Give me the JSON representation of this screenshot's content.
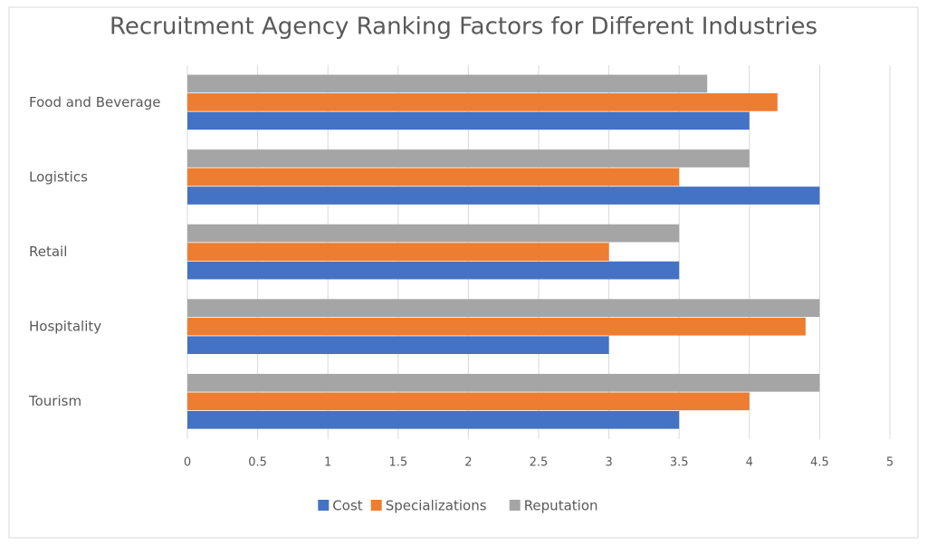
{
  "chart_data": {
    "type": "bar",
    "orientation": "horizontal",
    "title": "Recruitment Agency Ranking Factors for Different Industries",
    "categories": [
      "Food and Beverage",
      "Logistics",
      "Retail",
      "Hospitality",
      "Tourism"
    ],
    "series": [
      {
        "name": "Cost",
        "color": "#4472c4",
        "values": [
          4,
          4.5,
          3.5,
          3,
          3.5
        ]
      },
      {
        "name": "Specializations",
        "color": "#ed7d31",
        "values": [
          4.2,
          3.5,
          3,
          4.4,
          4
        ]
      },
      {
        "name": "Reputation",
        "color": "#a5a5a5",
        "values": [
          3.7,
          4,
          3.5,
          4.5,
          4.5
        ]
      }
    ],
    "xlim": [
      0,
      5
    ],
    "xticks": [
      0,
      0.5,
      1,
      1.5,
      2,
      2.5,
      3,
      3.5,
      4,
      4.5,
      5
    ],
    "grid": true,
    "legend": "bottom"
  }
}
